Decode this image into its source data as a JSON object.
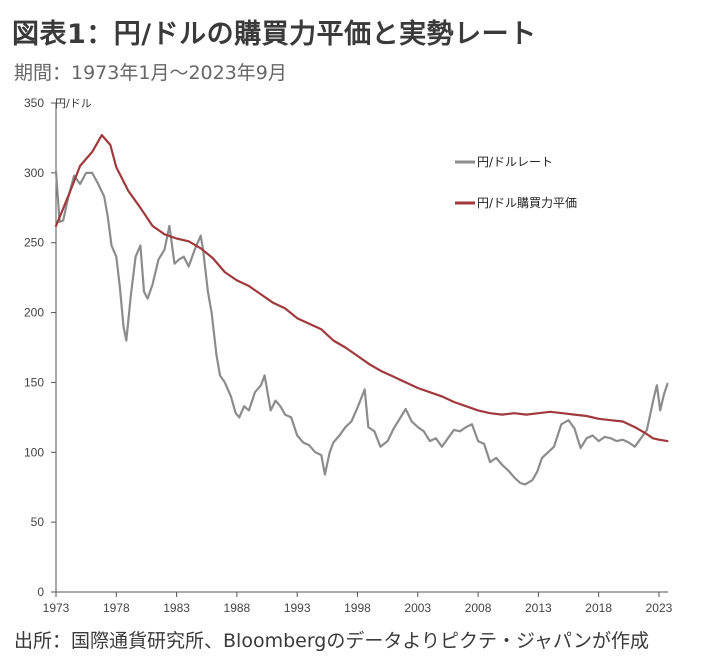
{
  "header": {
    "title": "図表1：円/ドルの購買力平価と実勢レート",
    "subtitle": "期間：1973年1月～2023年9月"
  },
  "footer": {
    "source": "出所：国際通貨研究所、Bloombergのデータよりピクテ・ジャパンが作成"
  },
  "chart_data": {
    "type": "line",
    "title": "図表1：円/ドルの購買力平価と実勢レート",
    "ylabel": "円/ドル",
    "xlabel": "",
    "ylim": [
      0,
      350
    ],
    "xlim": [
      1973,
      2023.75
    ],
    "yticks": [
      0,
      50,
      100,
      150,
      200,
      250,
      300,
      350
    ],
    "xticks": [
      1973,
      1978,
      1983,
      1988,
      1993,
      1998,
      2003,
      2008,
      2013,
      2018,
      2023
    ],
    "grid": false,
    "legend_position": "top-right",
    "series": [
      {
        "name": "円/ドルレート",
        "color": "#8c8c8c",
        "x": [
          1973.0,
          1973.3,
          1973.6,
          1974.0,
          1974.5,
          1975.0,
          1975.5,
          1976.0,
          1976.5,
          1977.0,
          1977.3,
          1977.6,
          1978.0,
          1978.3,
          1978.6,
          1978.83,
          1979.2,
          1979.6,
          1980.0,
          1980.3,
          1980.6,
          1981.0,
          1981.5,
          1982.0,
          1982.4,
          1982.83,
          1983.2,
          1983.6,
          1984.0,
          1984.5,
          1985.0,
          1985.2,
          1985.6,
          1985.9,
          1986.3,
          1986.6,
          1987.0,
          1987.5,
          1987.9,
          1988.2,
          1988.6,
          1989.0,
          1989.5,
          1990.0,
          1990.3,
          1990.8,
          1991.2,
          1991.6,
          1992.0,
          1992.5,
          1993.0,
          1993.5,
          1994.0,
          1994.5,
          1995.0,
          1995.3,
          1995.7,
          1996.0,
          1996.5,
          1997.0,
          1997.5,
          1998.0,
          1998.6,
          1998.9,
          1999.4,
          1999.9,
          2000.5,
          2001.0,
          2001.5,
          2002.0,
          2002.5,
          2003.0,
          2003.5,
          2004.0,
          2004.5,
          2005.0,
          2005.5,
          2006.0,
          2006.5,
          2007.0,
          2007.5,
          2008.0,
          2008.5,
          2009.0,
          2009.5,
          2010.0,
          2010.5,
          2011.0,
          2011.5,
          2011.9,
          2012.5,
          2012.9,
          2013.3,
          2013.8,
          2014.3,
          2014.9,
          2015.5,
          2016.0,
          2016.5,
          2017.0,
          2017.5,
          2018.0,
          2018.5,
          2019.0,
          2019.5,
          2020.0,
          2020.5,
          2021.0,
          2021.5,
          2022.0,
          2022.3,
          2022.6,
          2022.83,
          2023.1,
          2023.4,
          2023.7
        ],
        "values": [
          301,
          265,
          266,
          282,
          298,
          292,
          300,
          300,
          292,
          283,
          268,
          248,
          240,
          218,
          190,
          180,
          212,
          240,
          248,
          215,
          210,
          220,
          238,
          245,
          262,
          235,
          238,
          240,
          233,
          245,
          255,
          245,
          215,
          200,
          170,
          155,
          150,
          140,
          128,
          125,
          133,
          130,
          143,
          148,
          155,
          130,
          137,
          133,
          127,
          125,
          112,
          107,
          105,
          100,
          98,
          84,
          100,
          107,
          112,
          118,
          122,
          132,
          145,
          118,
          115,
          104,
          108,
          117,
          124,
          131,
          122,
          118,
          115,
          108,
          110,
          104,
          110,
          116,
          115,
          118,
          120,
          108,
          106,
          93,
          96,
          91,
          87,
          82,
          78,
          77,
          80,
          86,
          96,
          100,
          104,
          120,
          123,
          117,
          103,
          110,
          112,
          108,
          111,
          110,
          108,
          109,
          107,
          104,
          110,
          116,
          128,
          140,
          148,
          130,
          141,
          149
        ]
      },
      {
        "name": "円/ドル購買力平価",
        "color": "#a0393c",
        "x": [
          1973.0,
          1974.0,
          1975.0,
          1976.0,
          1976.8,
          1977.5,
          1978.0,
          1979.0,
          1980.0,
          1981.0,
          1982.0,
          1983.0,
          1984.0,
          1985.0,
          1986.0,
          1987.0,
          1988.0,
          1989.0,
          1990.0,
          1991.0,
          1992.0,
          1993.0,
          1994.0,
          1995.0,
          1996.0,
          1997.0,
          1998.0,
          1999.0,
          2000.0,
          2001.0,
          2002.0,
          2003.0,
          2004.0,
          2005.0,
          2006.0,
          2007.0,
          2008.0,
          2009.0,
          2010.0,
          2011.0,
          2012.0,
          2013.0,
          2014.0,
          2015.0,
          2016.0,
          2017.0,
          2018.0,
          2019.0,
          2020.0,
          2021.0,
          2022.0,
          2022.5,
          2023.0,
          2023.7
        ],
        "values": [
          262,
          283,
          305,
          315,
          327,
          320,
          304,
          287,
          275,
          262,
          256,
          253,
          251,
          246,
          239,
          229,
          223,
          219,
          213,
          207,
          203,
          196,
          192,
          188,
          180,
          175,
          169,
          163,
          158,
          154,
          150,
          146,
          143,
          140,
          136,
          133,
          130,
          128,
          127,
          128,
          127,
          128,
          129,
          128,
          127,
          126,
          124,
          123,
          122,
          118,
          113,
          110,
          109,
          108
        ]
      }
    ]
  }
}
